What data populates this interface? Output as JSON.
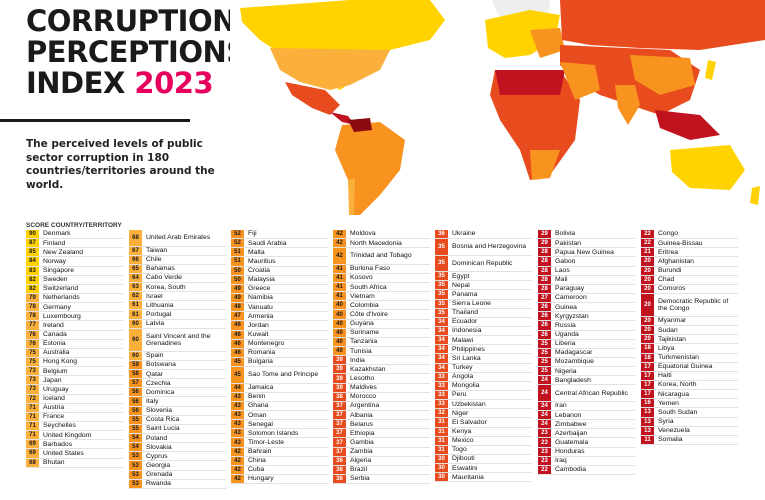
{
  "title": {
    "line1": "CORRUPTION",
    "line2": "PERCEPTIONS",
    "line3": "INDEX",
    "year": "2023"
  },
  "subtitle": "The perceived levels of public sector corruption in 180 countries/territories around the world.",
  "table_header": "SCORE  COUNTRY/TERRITORY",
  "map_icon": "world-choropleth-map",
  "colors": {
    "accent": "#e6005c",
    "very_clean": "#ffd200",
    "clean": "#fbb03b",
    "mid": "#f7931e",
    "corrupt": "#e84c1e",
    "very_corrupt": "#c1121f"
  },
  "columns": [
    [
      {
        "score": "90",
        "country": "Denmark"
      },
      {
        "score": "87",
        "country": "Finland"
      },
      {
        "score": "85",
        "country": "New Zealand"
      },
      {
        "score": "84",
        "country": "Norway"
      },
      {
        "score": "83",
        "country": "Singapore"
      },
      {
        "score": "82",
        "country": "Sweden"
      },
      {
        "score": "82",
        "country": "Switzerland"
      },
      {
        "score": "79",
        "country": "Netherlands"
      },
      {
        "score": "78",
        "country": "Germany"
      },
      {
        "score": "78",
        "country": "Luxembourg"
      },
      {
        "score": "77",
        "country": "Ireland"
      },
      {
        "score": "76",
        "country": "Canada"
      },
      {
        "score": "76",
        "country": "Estonia"
      },
      {
        "score": "75",
        "country": "Australia"
      },
      {
        "score": "75",
        "country": "Hong Kong"
      },
      {
        "score": "73",
        "country": "Belgium"
      },
      {
        "score": "73",
        "country": "Japan"
      },
      {
        "score": "73",
        "country": "Uruguay"
      },
      {
        "score": "72",
        "country": "Iceland"
      },
      {
        "score": "71",
        "country": "Austria"
      },
      {
        "score": "71",
        "country": "France"
      },
      {
        "score": "71",
        "country": "Seychelles"
      },
      {
        "score": "71",
        "country": "United Kingdom"
      },
      {
        "score": "69",
        "country": "Barbados"
      },
      {
        "score": "69",
        "country": "United States"
      },
      {
        "score": "68",
        "country": "Bhutan"
      }
    ],
    [
      {
        "score": "68",
        "country": "United Arab Emirates"
      },
      {
        "score": "67",
        "country": "Taiwan"
      },
      {
        "score": "66",
        "country": "Chile"
      },
      {
        "score": "65",
        "country": "Bahamas"
      },
      {
        "score": "64",
        "country": "Cabo Verde"
      },
      {
        "score": "63",
        "country": "Korea, South"
      },
      {
        "score": "62",
        "country": "Israel"
      },
      {
        "score": "61",
        "country": "Lithuania"
      },
      {
        "score": "61",
        "country": "Portugal"
      },
      {
        "score": "60",
        "country": "Latvia"
      },
      {
        "score": "60",
        "country": "Saint Vincent and the Grenadines"
      },
      {
        "score": "60",
        "country": "Spain"
      },
      {
        "score": "59",
        "country": "Botswana"
      },
      {
        "score": "58",
        "country": "Qatar"
      },
      {
        "score": "57",
        "country": "Czechia"
      },
      {
        "score": "56",
        "country": "Dominica"
      },
      {
        "score": "56",
        "country": "Italy"
      },
      {
        "score": "56",
        "country": "Slovenia"
      },
      {
        "score": "55",
        "country": "Costa Rica"
      },
      {
        "score": "55",
        "country": "Saint Lucia"
      },
      {
        "score": "54",
        "country": "Poland"
      },
      {
        "score": "54",
        "country": "Slovakia"
      },
      {
        "score": "53",
        "country": "Cyprus"
      },
      {
        "score": "53",
        "country": "Georgia"
      },
      {
        "score": "53",
        "country": "Grenada"
      },
      {
        "score": "53",
        "country": "Rwanda"
      }
    ],
    [
      {
        "score": "52",
        "country": "Fiji"
      },
      {
        "score": "52",
        "country": "Saudi Arabia"
      },
      {
        "score": "51",
        "country": "Malta"
      },
      {
        "score": "51",
        "country": "Mauritius"
      },
      {
        "score": "50",
        "country": "Croatia"
      },
      {
        "score": "50",
        "country": "Malaysia"
      },
      {
        "score": "49",
        "country": "Greece"
      },
      {
        "score": "49",
        "country": "Namibia"
      },
      {
        "score": "48",
        "country": "Vanuatu"
      },
      {
        "score": "47",
        "country": "Armenia"
      },
      {
        "score": "46",
        "country": "Jordan"
      },
      {
        "score": "46",
        "country": "Kuwait"
      },
      {
        "score": "46",
        "country": "Montenegro"
      },
      {
        "score": "46",
        "country": "Romania"
      },
      {
        "score": "45",
        "country": "Bulgaria"
      },
      {
        "score": "45",
        "country": "Sao Tome and Principe"
      },
      {
        "score": "44",
        "country": "Jamaica"
      },
      {
        "score": "43",
        "country": "Benin"
      },
      {
        "score": "43",
        "country": "Ghana"
      },
      {
        "score": "43",
        "country": "Oman"
      },
      {
        "score": "43",
        "country": "Senegal"
      },
      {
        "score": "43",
        "country": "Solomon Islands"
      },
      {
        "score": "43",
        "country": "Timor-Leste"
      },
      {
        "score": "42",
        "country": "Bahrain"
      },
      {
        "score": "42",
        "country": "China"
      },
      {
        "score": "42",
        "country": "Cuba"
      },
      {
        "score": "42",
        "country": "Hungary"
      }
    ],
    [
      {
        "score": "42",
        "country": "Moldova"
      },
      {
        "score": "42",
        "country": "North Macedonia"
      },
      {
        "score": "42",
        "country": "Trinidad and Tobago"
      },
      {
        "score": "41",
        "country": "Burkina Faso"
      },
      {
        "score": "41",
        "country": "Kosovo"
      },
      {
        "score": "41",
        "country": "South Africa"
      },
      {
        "score": "41",
        "country": "Vietnam"
      },
      {
        "score": "40",
        "country": "Colombia"
      },
      {
        "score": "40",
        "country": "Côte d'Ivoire"
      },
      {
        "score": "40",
        "country": "Guyana"
      },
      {
        "score": "40",
        "country": "Suriname"
      },
      {
        "score": "40",
        "country": "Tanzania"
      },
      {
        "score": "40",
        "country": "Tunisia"
      },
      {
        "score": "39",
        "country": "India"
      },
      {
        "score": "39",
        "country": "Kazakhstan"
      },
      {
        "score": "39",
        "country": "Lesotho"
      },
      {
        "score": "39",
        "country": "Maldives"
      },
      {
        "score": "38",
        "country": "Morocco"
      },
      {
        "score": "37",
        "country": "Argentina"
      },
      {
        "score": "37",
        "country": "Albania"
      },
      {
        "score": "37",
        "country": "Belarus"
      },
      {
        "score": "37",
        "country": "Ethiopia"
      },
      {
        "score": "37",
        "country": "Gambia"
      },
      {
        "score": "37",
        "country": "Zambia"
      },
      {
        "score": "36",
        "country": "Algeria"
      },
      {
        "score": "36",
        "country": "Brazil"
      },
      {
        "score": "36",
        "country": "Serbia"
      }
    ],
    [
      {
        "score": "36",
        "country": "Ukraine"
      },
      {
        "score": "35",
        "country": "Bosnia and Herzegovina"
      },
      {
        "score": "35",
        "country": "Dominican Republic"
      },
      {
        "score": "35",
        "country": "Egypt"
      },
      {
        "score": "35",
        "country": "Nepal"
      },
      {
        "score": "35",
        "country": "Panama"
      },
      {
        "score": "35",
        "country": "Sierra Leone"
      },
      {
        "score": "35",
        "country": "Thailand"
      },
      {
        "score": "34",
        "country": "Ecuador"
      },
      {
        "score": "34",
        "country": "Indonesia"
      },
      {
        "score": "34",
        "country": "Malawi"
      },
      {
        "score": "34",
        "country": "Philippines"
      },
      {
        "score": "34",
        "country": "Sri Lanka"
      },
      {
        "score": "34",
        "country": "Turkey"
      },
      {
        "score": "33",
        "country": "Angola"
      },
      {
        "score": "33",
        "country": "Mongolia"
      },
      {
        "score": "33",
        "country": "Peru"
      },
      {
        "score": "33",
        "country": "Uzbekistan"
      },
      {
        "score": "32",
        "country": "Niger"
      },
      {
        "score": "31",
        "country": "El Salvador"
      },
      {
        "score": "31",
        "country": "Kenya"
      },
      {
        "score": "31",
        "country": "Mexico"
      },
      {
        "score": "31",
        "country": "Togo"
      },
      {
        "score": "30",
        "country": "Djibouti"
      },
      {
        "score": "30",
        "country": "Eswatini"
      },
      {
        "score": "30",
        "country": "Mauritania"
      }
    ],
    [
      {
        "score": "29",
        "country": "Bolivia"
      },
      {
        "score": "29",
        "country": "Pakistan"
      },
      {
        "score": "28",
        "country": "Papua New Guinea"
      },
      {
        "score": "28",
        "country": "Gabon"
      },
      {
        "score": "28",
        "country": "Laos"
      },
      {
        "score": "28",
        "country": "Mali"
      },
      {
        "score": "28",
        "country": "Paraguay"
      },
      {
        "score": "27",
        "country": "Cameroon"
      },
      {
        "score": "26",
        "country": "Guinea"
      },
      {
        "score": "26",
        "country": "Kyrgyzstan"
      },
      {
        "score": "26",
        "country": "Russia"
      },
      {
        "score": "26",
        "country": "Uganda"
      },
      {
        "score": "25",
        "country": "Liberia"
      },
      {
        "score": "25",
        "country": "Madagascar"
      },
      {
        "score": "25",
        "country": "Mozambique"
      },
      {
        "score": "25",
        "country": "Nigeria"
      },
      {
        "score": "24",
        "country": "Bangladesh"
      },
      {
        "score": "24",
        "country": "Central African Republic"
      },
      {
        "score": "24",
        "country": "Iran"
      },
      {
        "score": "24",
        "country": "Lebanon"
      },
      {
        "score": "24",
        "country": "Zimbabwe"
      },
      {
        "score": "23",
        "country": "Azerbaijan"
      },
      {
        "score": "23",
        "country": "Guatemala"
      },
      {
        "score": "23",
        "country": "Honduras"
      },
      {
        "score": "23",
        "country": "Iraq"
      },
      {
        "score": "22",
        "country": "Cambodia"
      }
    ],
    [
      {
        "score": "22",
        "country": "Congo"
      },
      {
        "score": "22",
        "country": "Guinea-Bissau"
      },
      {
        "score": "21",
        "country": "Eritrea"
      },
      {
        "score": "20",
        "country": "Afghanistan"
      },
      {
        "score": "20",
        "country": "Burundi"
      },
      {
        "score": "20",
        "country": "Chad"
      },
      {
        "score": "20",
        "country": "Comoros"
      },
      {
        "score": "20",
        "country": "Democratic Republic of the Congo"
      },
      {
        "score": "20",
        "country": "Myanmar"
      },
      {
        "score": "20",
        "country": "Sudan"
      },
      {
        "score": "20",
        "country": "Tajikistan"
      },
      {
        "score": "18",
        "country": "Libya"
      },
      {
        "score": "18",
        "country": "Turkmenistan"
      },
      {
        "score": "17",
        "country": "Equatorial Guinea"
      },
      {
        "score": "17",
        "country": "Haiti"
      },
      {
        "score": "17",
        "country": "Korea, North"
      },
      {
        "score": "17",
        "country": "Nicaragua"
      },
      {
        "score": "16",
        "country": "Yemen"
      },
      {
        "score": "13",
        "country": "South Sudan"
      },
      {
        "score": "13",
        "country": "Syria"
      },
      {
        "score": "13",
        "country": "Venezuela"
      },
      {
        "score": "11",
        "country": "Somalia"
      }
    ]
  ]
}
